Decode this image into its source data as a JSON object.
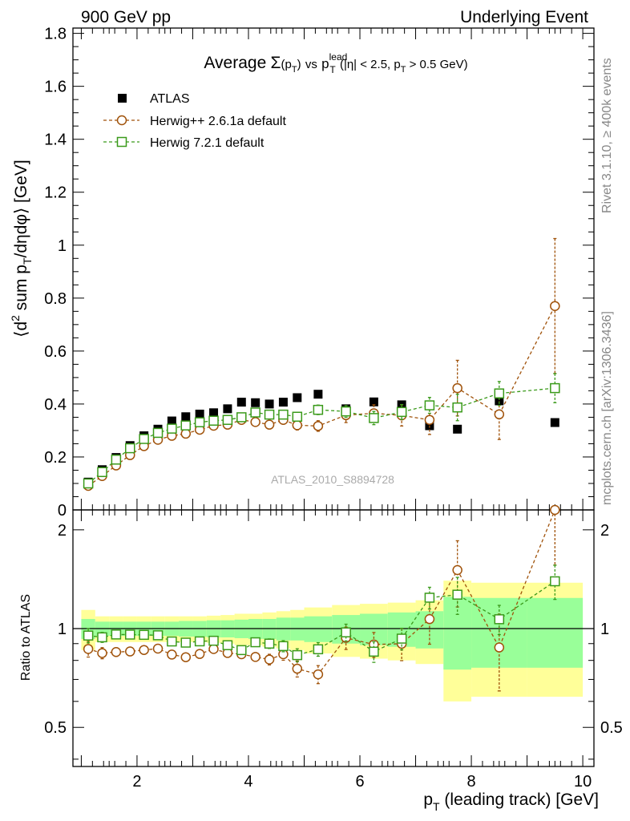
{
  "header": {
    "left": "900 GeV pp",
    "right": "Underlying Event"
  },
  "side_labels": {
    "rivet": "Rivet 3.1.10, ≥ 400k events",
    "mcplots": "mcplots.cern.ch [arXiv:1306.3436]"
  },
  "colors": {
    "atlas": "#000000",
    "herwigpp": "#a0520a",
    "herwig7": "#3a9a1a",
    "band_yellow": "#ffff99",
    "band_green": "#99ff99"
  },
  "chart_data": {
    "type": "scatter",
    "title_parts": {
      "prefix": "Average",
      "sigma": "Σ",
      "sigma_arg": "(p",
      "t": "T",
      "close": ")",
      "vs": "vs",
      "p": "p",
      "sup": "lead",
      "sub": "T",
      "cut1": "(|η| < 2.5, p",
      "cut_sub": "T",
      "cut2": " > 0.5 GeV)"
    },
    "ylabel_parts": {
      "a": "⟨d",
      "sup2": "2",
      "b": " sum p",
      "subT": "T",
      "c": "/dηdφ⟩ [GeV]"
    },
    "ratio_ylabel": "Ratio to ATLAS",
    "xlabel_parts": {
      "p": "p",
      "sub": "T",
      "rest": " (leading track) [GeV]"
    },
    "watermark": "ATLAS_2010_S8894728",
    "legend": [
      {
        "key": "atlas",
        "label": "ATLAS"
      },
      {
        "key": "herwigpp",
        "label": "Herwig++ 2.6.1a default"
      },
      {
        "key": "herwig7",
        "label": "Herwig 7.2.1 default"
      }
    ],
    "xlim": [
      0.85,
      10.2
    ],
    "ylim": [
      0,
      1.82
    ],
    "ratio_ylim": [
      0.38,
      2.3
    ],
    "x_ticks": [
      2,
      4,
      6,
      8,
      10
    ],
    "y_ticks": [
      0,
      0.2,
      0.4,
      0.6,
      0.8,
      1,
      1.2,
      1.4,
      1.6,
      1.8
    ],
    "y_tick_labels": [
      "0",
      "0.2",
      "0.4",
      "0.6",
      "0.8",
      "1",
      "1.2",
      "1.4",
      "1.6",
      "1.8"
    ],
    "ratio_ticks": [
      0.5,
      1,
      2
    ],
    "ratio_tick_labels": [
      "0.5",
      "1",
      "2"
    ],
    "x_edges": [
      1.0,
      1.25,
      1.5,
      1.75,
      2.0,
      2.25,
      2.5,
      2.75,
      3.0,
      3.25,
      3.5,
      3.75,
      4.0,
      4.25,
      4.5,
      4.75,
      5.0,
      5.5,
      6.0,
      6.5,
      7.0,
      7.5,
      8.0,
      9.0,
      10.0
    ],
    "x": [
      1.125,
      1.375,
      1.625,
      1.875,
      2.125,
      2.375,
      2.625,
      2.875,
      3.125,
      3.375,
      3.625,
      3.875,
      4.125,
      4.375,
      4.625,
      4.875,
      5.25,
      5.75,
      6.25,
      6.75,
      7.25,
      7.75,
      8.5,
      9.5
    ],
    "atlas": [
      0.105,
      0.152,
      0.198,
      0.243,
      0.28,
      0.305,
      0.336,
      0.352,
      0.362,
      0.367,
      0.382,
      0.407,
      0.405,
      0.4,
      0.407,
      0.424,
      0.437,
      0.382,
      0.408,
      0.397,
      0.318,
      0.305,
      0.412,
      0.33
    ],
    "band_yellow": [
      0.14,
      0.09,
      0.09,
      0.09,
      0.09,
      0.09,
      0.09,
      0.09,
      0.09,
      0.095,
      0.1,
      0.11,
      0.11,
      0.12,
      0.13,
      0.14,
      0.16,
      0.18,
      0.19,
      0.2,
      0.22,
      0.4,
      0.38,
      0.38
    ],
    "band_green": [
      0.07,
      0.05,
      0.05,
      0.05,
      0.05,
      0.05,
      0.05,
      0.055,
      0.055,
      0.06,
      0.06,
      0.065,
      0.07,
      0.07,
      0.08,
      0.08,
      0.09,
      0.1,
      0.11,
      0.12,
      0.13,
      0.25,
      0.24,
      0.24
    ],
    "series": [
      {
        "key": "herwigpp",
        "name": "Herwig++ 2.6.1a default",
        "values": [
          0.091,
          0.128,
          0.168,
          0.207,
          0.241,
          0.265,
          0.28,
          0.288,
          0.303,
          0.318,
          0.322,
          0.34,
          0.332,
          0.322,
          0.34,
          0.32,
          0.317,
          0.358,
          0.365,
          0.357,
          0.34,
          0.46,
          0.361,
          0.77
        ],
        "errors": [
          0.005,
          0.005,
          0.005,
          0.006,
          0.006,
          0.006,
          0.007,
          0.007,
          0.008,
          0.008,
          0.009,
          0.01,
          0.01,
          0.012,
          0.014,
          0.018,
          0.02,
          0.028,
          0.032,
          0.04,
          0.055,
          0.105,
          0.095,
          0.255
        ]
      },
      {
        "key": "herwig7",
        "name": "Herwig 7.2.1 default",
        "values": [
          0.1,
          0.143,
          0.19,
          0.233,
          0.268,
          0.291,
          0.307,
          0.319,
          0.331,
          0.337,
          0.34,
          0.35,
          0.368,
          0.36,
          0.36,
          0.352,
          0.378,
          0.372,
          0.347,
          0.37,
          0.395,
          0.387,
          0.44,
          0.46
        ],
        "errors": [
          0.005,
          0.005,
          0.005,
          0.006,
          0.006,
          0.006,
          0.007,
          0.007,
          0.008,
          0.008,
          0.009,
          0.01,
          0.01,
          0.012,
          0.014,
          0.016,
          0.018,
          0.022,
          0.025,
          0.028,
          0.03,
          0.05,
          0.045,
          0.055
        ]
      }
    ]
  }
}
